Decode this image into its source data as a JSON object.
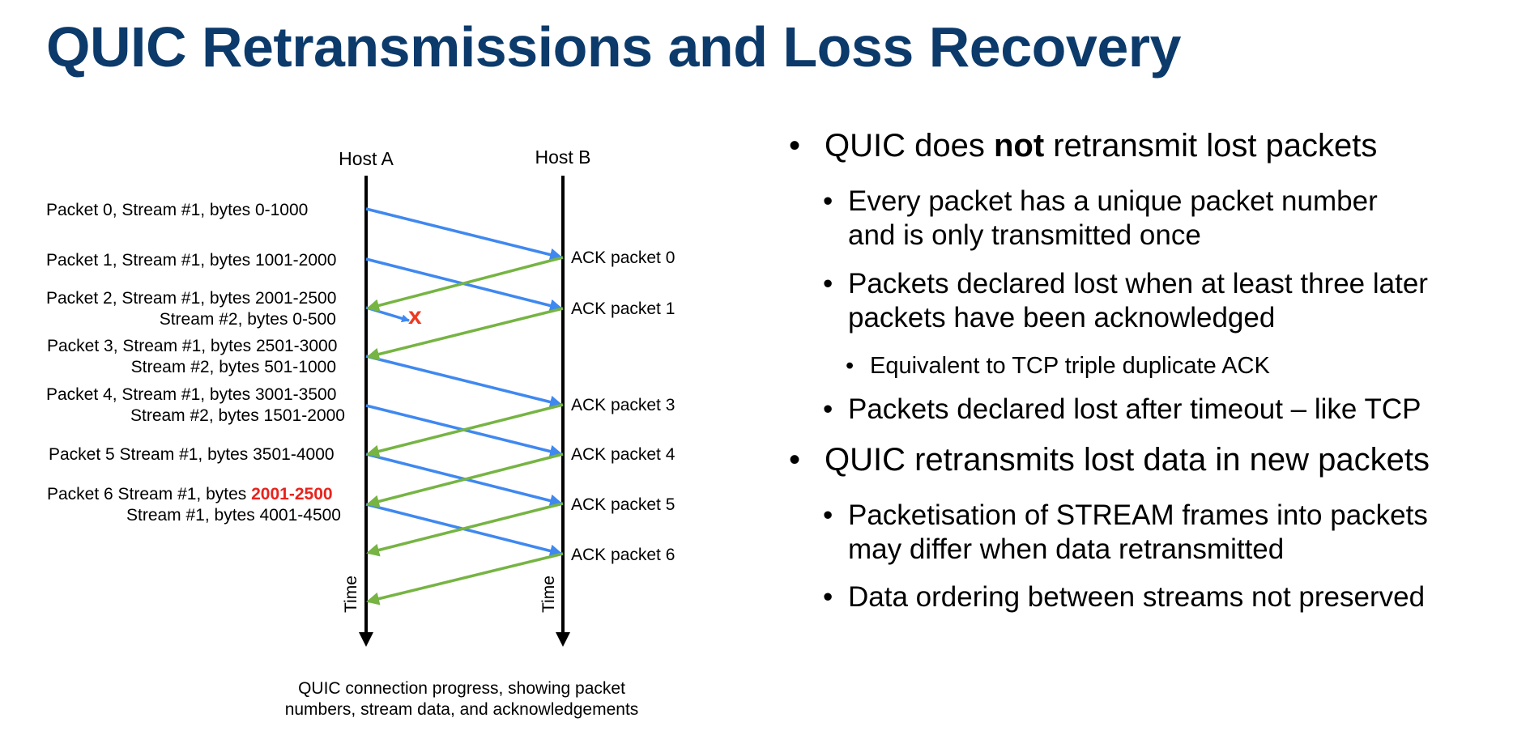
{
  "title": "QUIC Retransmissions and Loss Recovery",
  "diagram": {
    "host_a": "Host A",
    "host_b": "Host B",
    "time_label": "Time",
    "lost_marker": "x",
    "packets": [
      {
        "line1": "Packet 0, Stream #1, bytes 0-1000"
      },
      {
        "line1": "Packet 1, Stream #1, bytes 1001-2000"
      },
      {
        "line1": "Packet 2, Stream #1, bytes 2001-2500",
        "line2": "Stream #2, bytes 0-500"
      },
      {
        "line1": "Packet 3, Stream #1, bytes 2501-3000",
        "line2": "Stream #2, bytes 501-1000"
      },
      {
        "line1": "Packet 4, Stream #1, bytes 3001-3500",
        "line2": "Stream #2, bytes 1501-2000"
      },
      {
        "line1": "Packet 5 Stream #1, bytes 3501-4000"
      },
      {
        "line1_prefix": "Packet 6 Stream #1, bytes ",
        "line1_highlight": "2001-2500",
        "line2": "Stream #1, bytes 4001-4500"
      }
    ],
    "acks": [
      "ACK packet 0",
      "ACK packet 1",
      "ACK packet 3",
      "ACK packet 4",
      "ACK packet 5",
      "ACK packet 6"
    ],
    "colors": {
      "data": "#3f88f0",
      "ack": "#76b443",
      "lost": "#ec3a21",
      "highlight": "#e8231c",
      "title": "#0b3a6b"
    }
  },
  "caption": {
    "line1": "QUIC connection progress, showing packet",
    "line2": "numbers, stream data, and acknowledgements"
  },
  "bullets": {
    "b1_pre": "QUIC does ",
    "b1_bold": "not",
    "b1_post": " retransmit lost packets",
    "b1a_l1": "Every packet has a unique packet number",
    "b1a_l2": "and is only transmitted once",
    "b1b_l1": "Packets declared lost when at least three later",
    "b1b_l2": "packets have been acknowledged",
    "b1b1": "Equivalent to TCP triple duplicate ACK",
    "b1c": "Packets declared lost after timeout – like TCP",
    "b2": "QUIC retransmits lost data in new packets",
    "b2a_l1": "Packetisation of STREAM frames into packets",
    "b2a_l2": "may differ when data retransmitted",
    "b2b": "Data ordering between streams not preserved"
  }
}
